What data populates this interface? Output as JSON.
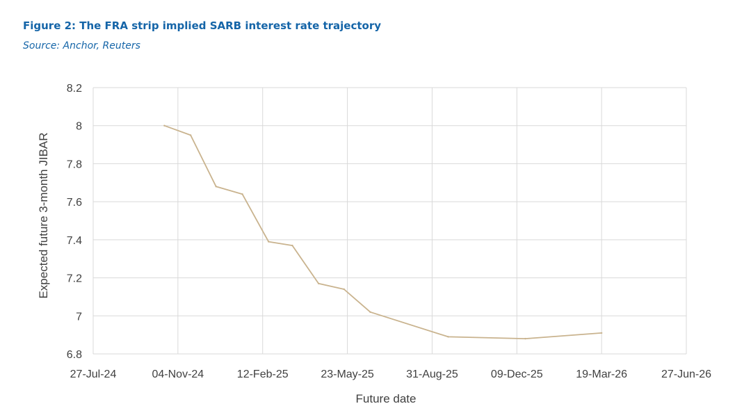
{
  "figure": {
    "title": "Figure 2: The FRA strip implied SARB interest rate trajectory",
    "source": "Source: Anchor, Reuters"
  },
  "colors": {
    "heading": "#1565a8",
    "line": "#c9b38e",
    "grid": "#d9d9d9",
    "text": "#404040"
  },
  "chart_data": {
    "type": "line",
    "xlabel": "Future date",
    "ylabel": "Expected future 3-month JIBAR",
    "xlim": [
      "2024-07-27",
      "2026-06-27"
    ],
    "ylim": [
      6.8,
      8.2
    ],
    "x_ticks": [
      "27-Jul-24",
      "04-Nov-24",
      "12-Feb-25",
      "23-May-25",
      "31-Aug-25",
      "09-Dec-25",
      "19-Mar-26",
      "27-Jun-26"
    ],
    "y_ticks": [
      "6.8",
      "7",
      "7.2",
      "7.4",
      "7.6",
      "7.8",
      "8",
      "8.2"
    ],
    "grid": true,
    "legend": "none",
    "series": [
      {
        "points": [
          {
            "x": "2024-10-19",
            "y": 8.0
          },
          {
            "x": "2024-11-19",
            "y": 7.95
          },
          {
            "x": "2024-12-19",
            "y": 7.68
          },
          {
            "x": "2025-01-19",
            "y": 7.64
          },
          {
            "x": "2025-02-19",
            "y": 7.39
          },
          {
            "x": "2025-03-19",
            "y": 7.37
          },
          {
            "x": "2025-04-19",
            "y": 7.17
          },
          {
            "x": "2025-05-19",
            "y": 7.14
          },
          {
            "x": "2025-06-19",
            "y": 7.02
          },
          {
            "x": "2025-09-19",
            "y": 6.89
          },
          {
            "x": "2025-12-19",
            "y": 6.88
          },
          {
            "x": "2026-03-19",
            "y": 6.91
          }
        ]
      }
    ]
  }
}
